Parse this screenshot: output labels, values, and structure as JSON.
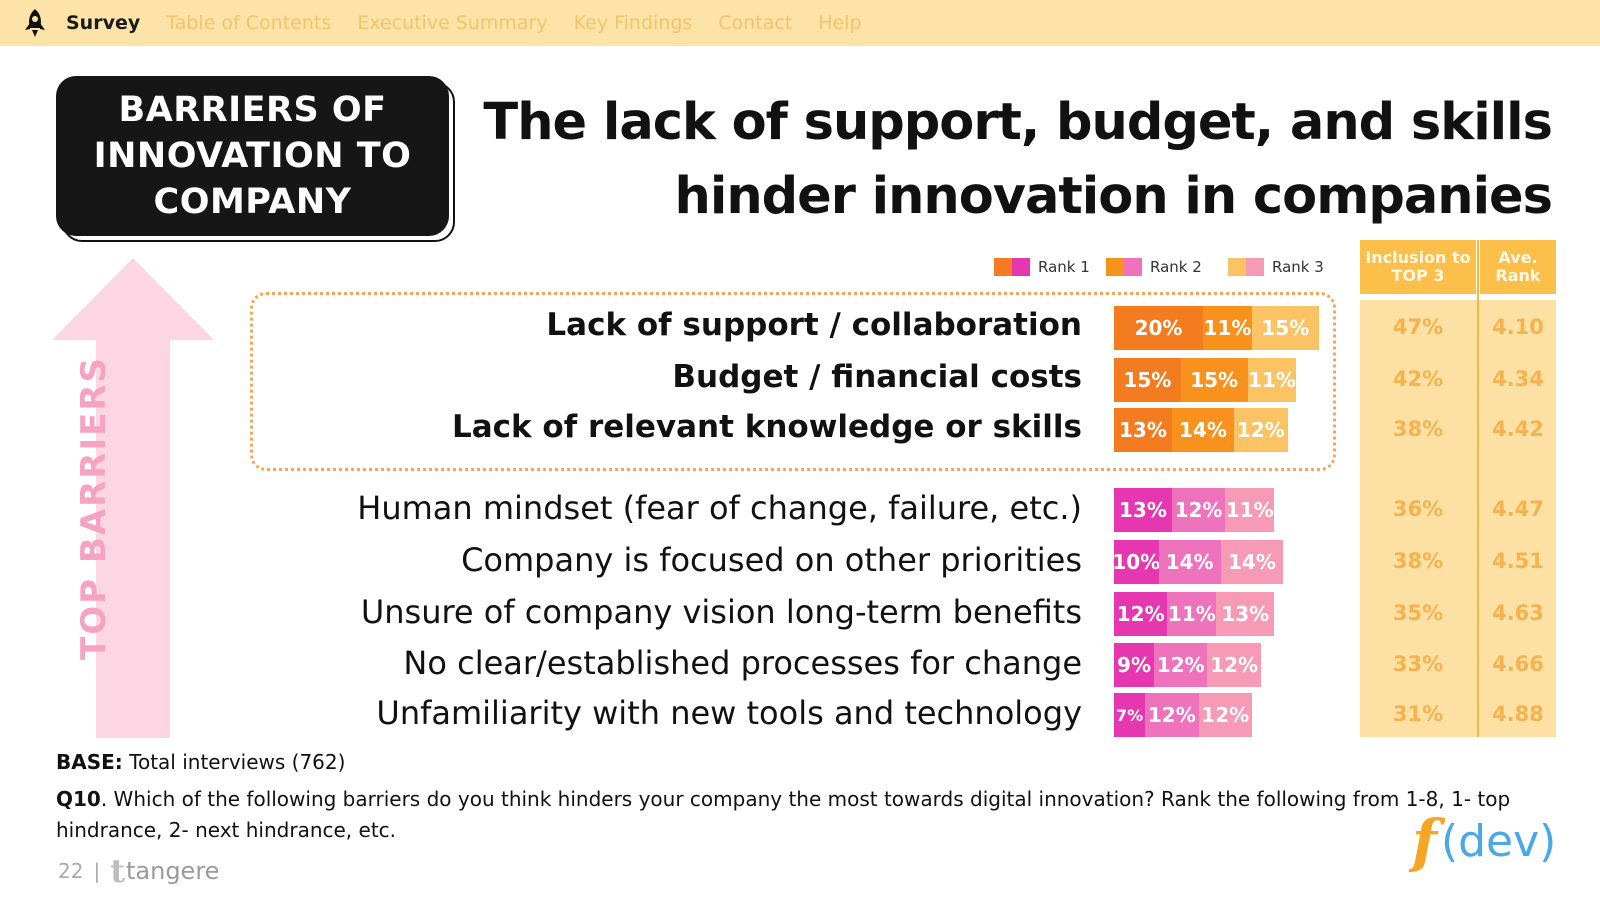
{
  "nav": {
    "items": [
      "Survey",
      "Table of  Contents",
      "Executive Summary",
      "Key Findings",
      "Contact",
      "Help"
    ],
    "active": "Survey"
  },
  "badge": {
    "text": "BARRIERS OF INNOVATION TO COMPANY"
  },
  "headline": {
    "line1": "The lack of support, budget, and skills",
    "line2": "hinder innovation in companies"
  },
  "arrow_label": "TOP BARRIERS",
  "legend": [
    {
      "label": "Rank 1",
      "colors": [
        "#f47c20",
        "#e637b1"
      ]
    },
    {
      "label": "Rank 2",
      "colors": [
        "#f8921c",
        "#ef72bd"
      ]
    },
    {
      "label": "Rank 3",
      "colors": [
        "#fbc364",
        "#f69ab5"
      ]
    }
  ],
  "panel": {
    "header_inclusion": "Inclusion to TOP 3",
    "header_rank": "Ave. Rank"
  },
  "colors": {
    "top_rank1": "#f47c20",
    "top_rank2": "#f8921c",
    "top_rank3": "#fbc364",
    "other_rank1": "#e637b1",
    "other_rank2": "#ef72bd",
    "other_rank3": "#f69ab5"
  },
  "chart_data": {
    "type": "bar",
    "stacked": true,
    "categories": [
      "Lack of support / collaboration",
      "Budget / financial costs",
      "Lack of relevant knowledge or skills",
      "Human mindset (fear of change, failure, etc.)",
      "Company is focused on other priorities",
      "Unsure of company vision long-term benefits",
      "No clear/established processes for change",
      "Unfamiliarity with new tools and technology"
    ],
    "highlighted_top": 3,
    "series": [
      {
        "name": "Rank 1",
        "values": [
          20,
          15,
          13,
          13,
          10,
          12,
          9,
          7
        ],
        "labels": [
          "20%",
          "15%",
          "13%",
          "13%",
          "10%",
          "12%",
          "9%",
          "7%"
        ]
      },
      {
        "name": "Rank 2",
        "values": [
          11,
          15,
          14,
          12,
          14,
          11,
          12,
          12
        ],
        "labels": [
          "11%",
          "15%",
          "14%",
          "12%",
          "14%",
          "11%",
          "12%",
          "12%"
        ]
      },
      {
        "name": "Rank 3",
        "values": [
          15,
          11,
          12,
          11,
          14,
          13,
          12,
          12
        ],
        "labels": [
          "15%",
          "11%",
          "12%",
          "11%",
          "14%",
          "13%",
          "12%",
          "12%"
        ]
      }
    ],
    "inclusion_top3": [
      "47%",
      "42%",
      "38%",
      "36%",
      "38%",
      "35%",
      "33%",
      "31%"
    ],
    "ave_rank": [
      "4.10",
      "4.34",
      "4.42",
      "4.47",
      "4.51",
      "4.63",
      "4.66",
      "4.88"
    ]
  },
  "footer": {
    "base_label": "BASE:",
    "base_text": "Total interviews (762)",
    "question_label": "Q10",
    "question_text": ". Which of the following barriers do you think hinders your company the most towards digital innovation? Rank the following from 1-8, 1- top hindrance, 2- next hindrance, etc.",
    "page_number": "22",
    "separator": "|",
    "brand": "tangere",
    "brand_mark": "t",
    "logo_f": "f",
    "logo_dev": "(dev)"
  }
}
